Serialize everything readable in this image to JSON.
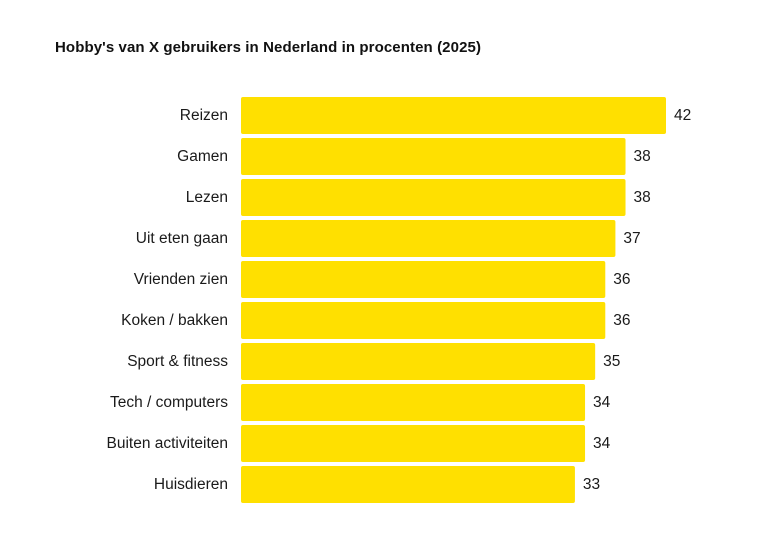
{
  "chart_data": {
    "type": "bar",
    "orientation": "horizontal",
    "title": "Hobby's van X gebruikers in Nederland in procenten (2025)",
    "xlabel": "",
    "ylabel": "",
    "categories": [
      "Reizen",
      "Gamen",
      "Lezen",
      "Uit eten gaan",
      "Vrienden zien",
      "Koken / bakken",
      "Sport & fitness",
      "Tech / computers",
      "Buiten activiteiten",
      "Huisdieren"
    ],
    "values": [
      42,
      38,
      38,
      37,
      36,
      36,
      35,
      34,
      34,
      33
    ],
    "xlim": [
      0,
      42
    ],
    "grid": false,
    "legend": "none",
    "bar_color": "#FFE000",
    "data_labels": true
  }
}
